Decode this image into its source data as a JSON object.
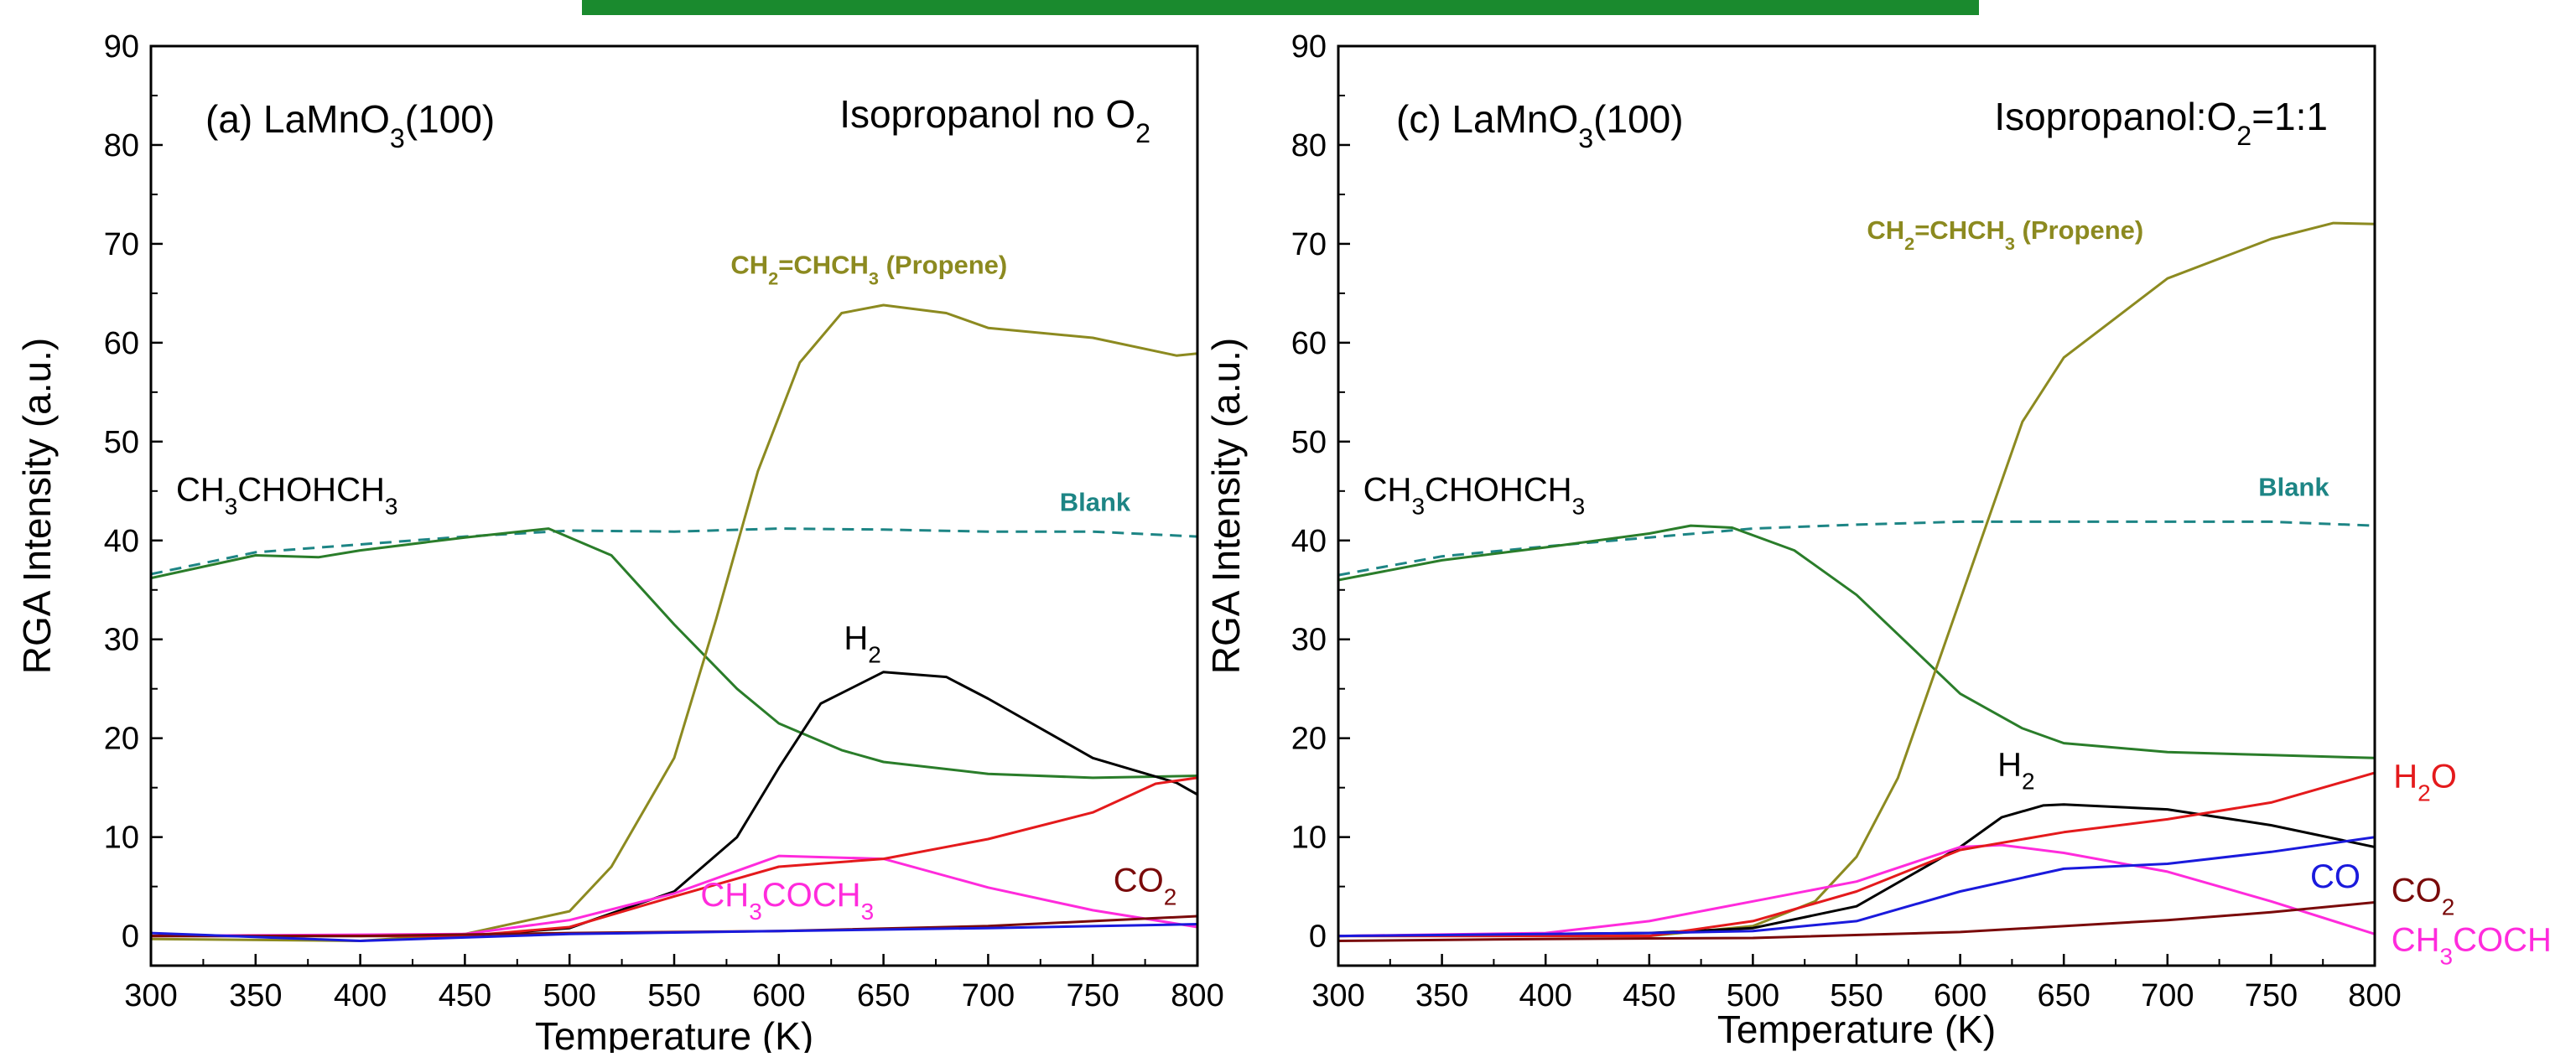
{
  "colors": {
    "banner": "#1a8a2e",
    "propene": "#8c8a20",
    "isopropanol": "#2a7d2a",
    "blank": "#1d8585",
    "h2": "#000000",
    "acetone": "#ff2bdc",
    "h2o": "#e41a1c",
    "co2": "#7a0a0a",
    "co": "#1a1adc"
  },
  "chart_data": [
    {
      "type": "line",
      "panel_label": {
        "pre": "(a) LaMnO",
        "sub": "3",
        "post": "(100)"
      },
      "condition": {
        "pre": "Isopropanol no O",
        "sub": "2",
        "post": ""
      },
      "xlabel": "Temperature (K)",
      "ylabel": "RGA Intensity (a.u.)",
      "xlim": [
        300,
        800
      ],
      "ylim": [
        -3,
        90
      ],
      "xticks": [
        "300",
        "350",
        "400",
        "450",
        "500",
        "550",
        "600",
        "650",
        "700",
        "750",
        "800"
      ],
      "yticks": [
        "0",
        "10",
        "20",
        "30",
        "40",
        "50",
        "60",
        "70",
        "80",
        "90"
      ],
      "series": [
        {
          "key": "blank",
          "dash": true,
          "x": [
            300,
            350,
            400,
            450,
            500,
            550,
            600,
            650,
            700,
            750,
            800
          ],
          "y": [
            36.6,
            38.8,
            39.6,
            40.4,
            41.0,
            40.9,
            41.2,
            41.1,
            40.9,
            40.9,
            40.4
          ]
        },
        {
          "key": "isopropanol",
          "x": [
            300,
            350,
            380,
            400,
            450,
            490,
            520,
            550,
            580,
            600,
            630,
            650,
            700,
            750,
            800
          ],
          "y": [
            36.2,
            38.5,
            38.3,
            39.0,
            40.3,
            41.2,
            38.5,
            31.5,
            25.0,
            21.5,
            18.8,
            17.6,
            16.4,
            16.0,
            16.2
          ]
        },
        {
          "key": "propene",
          "x": [
            300,
            400,
            450,
            500,
            520,
            550,
            570,
            590,
            610,
            630,
            650,
            680,
            700,
            750,
            790,
            800
          ],
          "y": [
            -0.3,
            -0.5,
            0.2,
            2.5,
            7.0,
            18.0,
            32.0,
            47.0,
            58.0,
            63.0,
            63.8,
            63.0,
            61.5,
            60.5,
            58.7,
            58.9
          ]
        },
        {
          "key": "h2",
          "x": [
            300,
            450,
            500,
            550,
            580,
            600,
            620,
            650,
            680,
            700,
            750,
            790,
            800
          ],
          "y": [
            0,
            0,
            0.8,
            4.5,
            10.0,
            17.0,
            23.5,
            26.7,
            26.2,
            24.0,
            18.0,
            15.5,
            14.3
          ]
        },
        {
          "key": "acetone",
          "x": [
            300,
            450,
            500,
            550,
            600,
            650,
            700,
            750,
            800
          ],
          "y": [
            0,
            0.2,
            1.6,
            4.3,
            8.1,
            7.8,
            4.9,
            2.6,
            0.9
          ]
        },
        {
          "key": "h2o",
          "x": [
            300,
            450,
            500,
            550,
            600,
            650,
            700,
            750,
            780,
            800
          ],
          "y": [
            0,
            0,
            0.9,
            4.0,
            7.0,
            7.8,
            9.8,
            12.5,
            15.4,
            16.0
          ]
        },
        {
          "key": "co2",
          "x": [
            300,
            400,
            500,
            600,
            700,
            750,
            800
          ],
          "y": [
            0,
            0,
            0.3,
            0.5,
            1.0,
            1.5,
            2.0
          ]
        },
        {
          "key": "co",
          "x": [
            300,
            400,
            500,
            600,
            700,
            800
          ],
          "y": [
            0.3,
            -0.5,
            0.2,
            0.5,
            0.8,
            1.2
          ]
        }
      ],
      "labels": [
        {
          "key": "isopropanol",
          "color": "#000000",
          "pre": "CH",
          "sub": "3",
          "post": "CHOHCH",
          "sub2": "3",
          "x": 312,
          "y": 44,
          "style": "annot"
        },
        {
          "key": "propene",
          "pre": "CH",
          "sub": "2",
          "post": "=CHCH",
          "sub2": "3",
          "post2": " (Propene)",
          "x": 577,
          "y": 67,
          "style": "bold"
        },
        {
          "key": "blank",
          "text": "Blank",
          "x": 768,
          "y": 43,
          "style": "bold",
          "anchor": "end"
        },
        {
          "key": "h2",
          "color": "#000000",
          "pre": "H",
          "sub": "2",
          "x": 640,
          "y": 29,
          "style": "annot",
          "anchor": "middle"
        },
        {
          "key": "acetone",
          "pre": "CH",
          "sub": "3",
          "post": "COCH",
          "sub2": "3",
          "x": 604,
          "y": 3,
          "style": "annot",
          "anchor": "middle"
        },
        {
          "key": "co2",
          "pre": "CO",
          "sub": "2",
          "x": 775,
          "y": 4.5,
          "style": "annot",
          "anchor": "middle"
        }
      ]
    },
    {
      "type": "line",
      "panel_label": {
        "pre": "(c) LaMnO",
        "sub": "3",
        "post": "(100)"
      },
      "condition": {
        "pre": "Isopropanol:O",
        "sub": "2",
        "post": "=1:1"
      },
      "xlabel": "Temperature (K)",
      "ylabel": "RGA Intensity (a.u.)",
      "xlim": [
        300,
        800
      ],
      "ylim": [
        -3,
        90
      ],
      "xticks": [
        "300",
        "350",
        "400",
        "450",
        "500",
        "550",
        "600",
        "650",
        "700",
        "750",
        "800"
      ],
      "yticks": [
        "0",
        "10",
        "20",
        "30",
        "40",
        "50",
        "60",
        "70",
        "80",
        "90"
      ],
      "series": [
        {
          "key": "blank",
          "dash": true,
          "x": [
            300,
            350,
            400,
            450,
            500,
            550,
            600,
            650,
            700,
            750,
            800
          ],
          "y": [
            36.5,
            38.4,
            39.4,
            40.3,
            41.2,
            41.6,
            41.9,
            41.9,
            41.9,
            41.9,
            41.5
          ]
        },
        {
          "key": "isopropanol",
          "x": [
            300,
            350,
            400,
            450,
            470,
            490,
            520,
            550,
            580,
            600,
            630,
            650,
            700,
            750,
            800
          ],
          "y": [
            36.0,
            38.0,
            39.3,
            40.7,
            41.5,
            41.3,
            39.0,
            34.5,
            28.5,
            24.5,
            21.0,
            19.5,
            18.6,
            18.3,
            18.0
          ]
        },
        {
          "key": "propene",
          "x": [
            300,
            450,
            500,
            530,
            550,
            570,
            590,
            610,
            630,
            650,
            700,
            750,
            780,
            800
          ],
          "y": [
            0,
            0,
            1.0,
            3.5,
            8.0,
            16.0,
            28.0,
            40.0,
            52.0,
            58.5,
            66.5,
            70.5,
            72.1,
            72.0
          ]
        },
        {
          "key": "h2",
          "x": [
            300,
            450,
            500,
            550,
            600,
            620,
            640,
            650,
            700,
            750,
            800
          ],
          "y": [
            0,
            0.3,
            0.8,
            3.0,
            9.0,
            12.0,
            13.2,
            13.3,
            12.8,
            11.2,
            9.0
          ]
        },
        {
          "key": "acetone",
          "x": [
            300,
            400,
            450,
            500,
            550,
            600,
            620,
            650,
            700,
            750,
            800
          ],
          "y": [
            0,
            0.3,
            1.5,
            3.5,
            5.5,
            9.0,
            9.2,
            8.4,
            6.5,
            3.5,
            0.2
          ]
        },
        {
          "key": "h2o",
          "x": [
            300,
            450,
            500,
            550,
            600,
            650,
            700,
            750,
            800
          ],
          "y": [
            0,
            0,
            1.5,
            4.5,
            8.7,
            10.5,
            11.8,
            13.5,
            16.5
          ]
        },
        {
          "key": "co2",
          "x": [
            300,
            400,
            500,
            600,
            700,
            750,
            800
          ],
          "y": [
            -0.5,
            -0.3,
            -0.2,
            0.4,
            1.6,
            2.4,
            3.4
          ]
        },
        {
          "key": "co",
          "x": [
            300,
            450,
            500,
            550,
            600,
            650,
            700,
            750,
            800
          ],
          "y": [
            0,
            0.3,
            0.5,
            1.5,
            4.5,
            6.8,
            7.3,
            8.5,
            10.0
          ]
        }
      ],
      "labels": [
        {
          "key": "isopropanol",
          "color": "#000000",
          "pre": "CH",
          "sub": "3",
          "post": "CHOHCH",
          "sub2": "3",
          "x": 312,
          "y": 44,
          "style": "annot"
        },
        {
          "key": "propene",
          "pre": "CH",
          "sub": "2",
          "post": "=CHCH",
          "sub2": "3",
          "post2": " (Propene)",
          "x": 555,
          "y": 70.5,
          "style": "bold"
        },
        {
          "key": "blank",
          "text": "Blank",
          "x": 778,
          "y": 44.5,
          "style": "bold",
          "anchor": "end"
        },
        {
          "key": "h2",
          "color": "#000000",
          "pre": "H",
          "sub": "2",
          "x": 627,
          "y": 16.2,
          "style": "annot",
          "anchor": "middle"
        },
        {
          "key": "h2o",
          "pre": "H",
          "sub": "2",
          "post": "O",
          "x": 809,
          "y": 15,
          "style": "annot"
        },
        {
          "key": "co",
          "text": "CO",
          "x": 781,
          "y": 4.9,
          "style": "annot",
          "anchor": "middle"
        },
        {
          "key": "co2",
          "pre": "CO",
          "sub": "2",
          "x": 808,
          "y": 3.5,
          "style": "annot"
        },
        {
          "key": "acetone",
          "pre": "CH",
          "sub": "3",
          "post": "COCH",
          "x": 808,
          "y": -1.5,
          "style": "annot"
        }
      ]
    }
  ]
}
